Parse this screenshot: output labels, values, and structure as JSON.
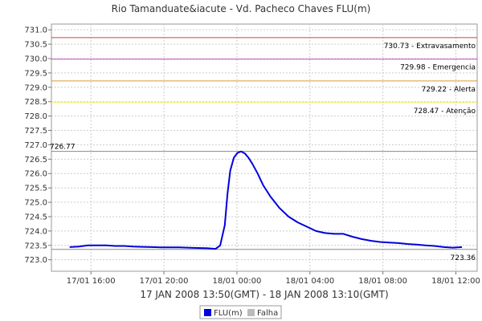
{
  "chart_data": {
    "type": "line",
    "title": "Rio Tamanduate&iacute - Vd. Pacheco Chaves FLU(m)",
    "xlabel": "17 JAN 2008 13:50(GMT) - 18 JAN 2008 13:10(GMT)",
    "ylabel": "",
    "ylim": [
      722.6,
      731.2
    ],
    "yticks": [
      "731.0",
      "730.5",
      "730.0",
      "729.5",
      "729.0",
      "728.5",
      "728.0",
      "727.5",
      "727.0",
      "726.5",
      "726.0",
      "725.5",
      "725.0",
      "724.5",
      "724.0",
      "723.5",
      "723.0"
    ],
    "xlim_hours": [
      0,
      23.3333
    ],
    "xticks": [
      {
        "label": "17/01 16:00",
        "hour": 2.1667
      },
      {
        "label": "17/01 20:00",
        "hour": 6.1667
      },
      {
        "label": "18/01 00:00",
        "hour": 10.1667
      },
      {
        "label": "18/01 04:00",
        "hour": 14.1667
      },
      {
        "label": "18/01 08:00",
        "hour": 18.1667
      },
      {
        "label": "18/01 12:00",
        "hour": 22.1667
      }
    ],
    "grid": true,
    "reference_lines": [
      {
        "value": 730.73,
        "label": "730.73 - Extravasamento",
        "color": "#cc4444",
        "label_side": "right"
      },
      {
        "value": 729.98,
        "label": "729.98 - Emergencia",
        "color": "#cc44cc",
        "label_side": "right"
      },
      {
        "value": 729.22,
        "label": "729.22 - Alerta",
        "color": "#dd9933",
        "label_side": "right"
      },
      {
        "value": 728.47,
        "label": "728.47 - Atenção",
        "color": "#eeee66",
        "label_side": "right"
      },
      {
        "value": 726.77,
        "label": "726.77",
        "color": "#888888",
        "label_side": "left"
      },
      {
        "value": 723.36,
        "label": "723.36",
        "color": "#888888",
        "label_side": "right_below"
      }
    ],
    "series": [
      {
        "name": "FLU(m)",
        "color": "#0000dd",
        "x_hours": [
          1.0,
          1.5,
          2.0,
          2.5,
          3.0,
          3.5,
          4.0,
          4.5,
          5.0,
          5.5,
          6.0,
          6.5,
          7.0,
          7.5,
          8.0,
          8.5,
          9.0,
          9.25,
          9.5,
          9.65,
          9.8,
          10.0,
          10.2,
          10.4,
          10.6,
          10.8,
          11.0,
          11.3,
          11.6,
          12.0,
          12.5,
          13.0,
          13.5,
          14.0,
          14.5,
          15.0,
          15.5,
          16.0,
          16.5,
          17.0,
          17.5,
          18.0,
          18.5,
          19.0,
          19.5,
          20.0,
          20.5,
          21.0,
          21.5,
          22.0,
          22.5
        ],
        "values": [
          723.44,
          723.46,
          723.5,
          723.5,
          723.5,
          723.48,
          723.48,
          723.46,
          723.45,
          723.44,
          723.43,
          723.43,
          723.43,
          723.42,
          723.41,
          723.4,
          723.38,
          723.5,
          724.2,
          725.3,
          726.1,
          726.55,
          726.72,
          726.77,
          726.7,
          726.55,
          726.35,
          726.0,
          725.6,
          725.2,
          724.8,
          724.5,
          724.3,
          724.15,
          724.0,
          723.93,
          723.9,
          723.9,
          723.8,
          723.72,
          723.66,
          723.62,
          723.6,
          723.58,
          723.55,
          723.53,
          723.5,
          723.48,
          723.44,
          723.42,
          723.44
        ]
      }
    ],
    "legend": {
      "placement": "bottom-center",
      "entries": [
        {
          "label": "FLU(m)",
          "color": "#0000dd"
        },
        {
          "label": "Falha",
          "color": "#bbbbbb"
        }
      ]
    }
  }
}
